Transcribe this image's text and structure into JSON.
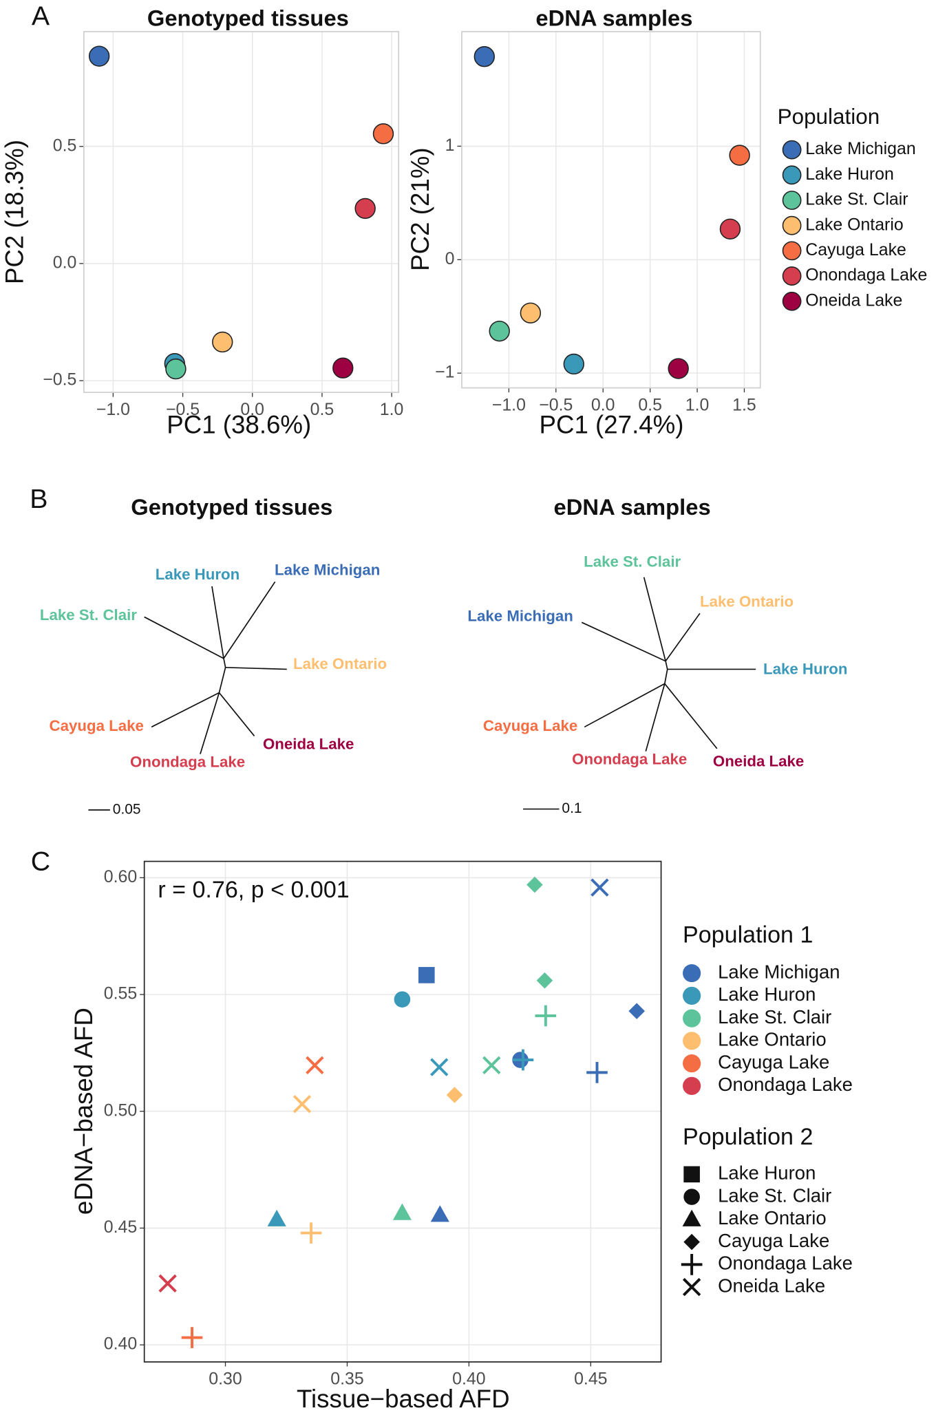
{
  "panel_labels": [
    "A",
    "B",
    "C"
  ],
  "chart_data": [
    {
      "type": "scatter",
      "title": "Genotyped tissues",
      "x_label": "PC1 (38.6%)",
      "y_label": "PC2 (18.3%)",
      "xlim": [
        -1.21,
        1.05
      ],
      "ylim": [
        -0.55,
        0.99
      ],
      "xticks": [
        {
          "value": -1.0,
          "label": "−1.0"
        },
        {
          "value": -0.5,
          "label": "−0.5"
        },
        {
          "value": 0,
          "label": "0.0"
        },
        {
          "value": 0.5,
          "label": "0.5"
        },
        {
          "value": 1.0,
          "label": "1.0"
        }
      ],
      "yticks": [
        {
          "value": -0.5,
          "label": "−0.5"
        },
        {
          "value": 0,
          "label": "0.0"
        },
        {
          "value": 0.5,
          "label": "0.5"
        }
      ],
      "grid": true,
      "marker": "circle",
      "series": [
        {
          "color": "#3a6db5",
          "x": [
            -1.1
          ],
          "values": [
            0.885
          ]
        },
        {
          "color": "#3a98b9",
          "x": [
            -0.558
          ],
          "values": [
            -0.427
          ]
        },
        {
          "color": "#5dc39b",
          "x": [
            -0.55
          ],
          "values": [
            -0.45
          ]
        },
        {
          "color": "#fdbf6f",
          "x": [
            -0.215
          ],
          "values": [
            -0.335
          ]
        },
        {
          "color": "#f46d43",
          "x": [
            0.94
          ],
          "values": [
            0.554
          ]
        },
        {
          "color": "#d53e4f",
          "x": [
            0.81
          ],
          "values": [
            0.235
          ]
        },
        {
          "color": "#9e0142",
          "x": [
            0.65
          ],
          "values": [
            -0.446
          ]
        }
      ]
    },
    {
      "type": "scatter",
      "title": "eDNA samples",
      "x_label": "PC1 (27.4%)",
      "y_label": "PC2 (21%)",
      "xlim": [
        -1.5,
        1.67
      ],
      "ylim": [
        -1.13,
        2.01
      ],
      "xticks": [
        {
          "value": -1.0,
          "label": "−1.0"
        },
        {
          "value": -0.5,
          "label": "−0.5"
        },
        {
          "value": 0,
          "label": "0.0"
        },
        {
          "value": 0.5,
          "label": "0.5"
        },
        {
          "value": 1.0,
          "label": "1.0"
        },
        {
          "value": 1.5,
          "label": "1.5"
        }
      ],
      "yticks": [
        {
          "value": -1,
          "label": "−1"
        },
        0,
        1
      ],
      "grid": true,
      "marker": "circle",
      "legend_title": "Population",
      "series": [
        {
          "name": "Lake Michigan",
          "color": "#3a6db5",
          "x": [
            -1.26
          ],
          "values": [
            1.79
          ]
        },
        {
          "name": "Lake Huron",
          "color": "#3a98b9",
          "x": [
            -0.31
          ],
          "values": [
            -0.92
          ]
        },
        {
          "name": "Lake St. Clair",
          "color": "#5dc39b",
          "x": [
            -1.1
          ],
          "values": [
            -0.63
          ]
        },
        {
          "name": "Lake Ontario",
          "color": "#fdbf6f",
          "x": [
            -0.77
          ],
          "values": [
            -0.47
          ]
        },
        {
          "name": "Cayuga Lake",
          "color": "#f46d43",
          "x": [
            1.45
          ],
          "values": [
            0.92
          ]
        },
        {
          "name": "Onondaga Lake",
          "color": "#d53e4f",
          "x": [
            1.35
          ],
          "values": [
            0.27
          ]
        },
        {
          "name": "Oneida Lake",
          "color": "#9e0142",
          "x": [
            0.8
          ],
          "values": [
            -0.96
          ]
        }
      ]
    },
    {
      "type": "tree",
      "title": "Genotyped tissues",
      "scale_label": "0.05",
      "tips": [
        {
          "label": "Lake Huron",
          "color": "#3a98b9"
        },
        {
          "label": "Lake Michigan",
          "color": "#3a6db5"
        },
        {
          "label": "Lake St. Clair",
          "color": "#5dc39b"
        },
        {
          "label": "Lake Ontario",
          "color": "#fdbf6f"
        },
        {
          "label": "Cayuga Lake",
          "color": "#f46d43"
        },
        {
          "label": "Onondaga Lake",
          "color": "#d53e4f"
        },
        {
          "label": "Oneida Lake",
          "color": "#9e0142"
        }
      ]
    },
    {
      "type": "tree",
      "title": "eDNA samples",
      "scale_label": "0.1",
      "tips": [
        {
          "label": "Lake St. Clair",
          "color": "#5dc39b"
        },
        {
          "label": "Lake Ontario",
          "color": "#fdbf6f"
        },
        {
          "label": "Lake Michigan",
          "color": "#3a6db5"
        },
        {
          "label": "Lake Huron",
          "color": "#3a98b9"
        },
        {
          "label": "Cayuga Lake",
          "color": "#f46d43"
        },
        {
          "label": "Onondaga Lake",
          "color": "#d53e4f"
        },
        {
          "label": "Oneida Lake",
          "color": "#9e0142"
        }
      ]
    },
    {
      "type": "scatter",
      "x_label": "Tissue−based AFD",
      "y_label": "eDNA−based AFD",
      "annotation": "r = 0.76, p < 0.001",
      "xlim": [
        0.2667,
        0.4789
      ],
      "ylim": [
        0.3927,
        0.607
      ],
      "xticks": [
        {
          "value": 0.3,
          "label": "0.30"
        },
        0.35,
        {
          "value": 0.4,
          "label": "0.40"
        },
        0.45
      ],
      "yticks": [
        {
          "value": 0.4,
          "label": "0.40"
        },
        0.45,
        {
          "value": 0.5,
          "label": "0.50"
        },
        0.55,
        {
          "value": 0.6,
          "label": "0.60"
        }
      ],
      "grid": true,
      "legend_title": "Population 1",
      "series": [
        {
          "name": "Lake Michigan",
          "color": "#3a6db5",
          "x": [
            0.3826,
            0.4537,
            0.4689,
            0.4211,
            0.4526,
            0.3881
          ],
          "values": [
            0.5583,
            0.5958,
            0.5429,
            0.522,
            0.5166,
            0.4556
          ],
          "population_2": [
            "Lake Huron",
            "Oneida Lake",
            "Cayuga Lake",
            "Lake St. Clair",
            "Onondaga Lake",
            "Lake Ontario"
          ]
        },
        {
          "name": "Lake Huron",
          "color": "#3a98b9",
          "x": [
            0.3726,
            0.4222,
            0.3878,
            0.3211
          ],
          "values": [
            0.5479,
            0.522,
            0.5189,
            0.4537
          ],
          "population_2": [
            "Lake St. Clair",
            "Onondaga Lake",
            "Oneida Lake",
            "Lake Ontario"
          ]
        },
        {
          "name": "Lake St. Clair",
          "color": "#5dc39b",
          "x": [
            0.427,
            0.4311,
            0.4315,
            0.4093,
            0.3726
          ],
          "values": [
            0.597,
            0.556,
            0.5409,
            0.5197,
            0.4564
          ],
          "population_2": [
            "Cayuga Lake",
            "Cayuga Lake",
            "Onondaga Lake",
            "Oneida Lake",
            "Lake Ontario"
          ]
        },
        {
          "name": "Lake Ontario",
          "color": "#fdbf6f",
          "x": [
            0.3941,
            0.3315,
            0.3352
          ],
          "values": [
            0.507,
            0.5031,
            0.4479
          ],
          "population_2": [
            "Cayuga Lake",
            "Oneida Lake",
            "Onondaga Lake"
          ]
        },
        {
          "name": "Cayuga Lake",
          "color": "#f46d43",
          "x": [
            0.3367,
            0.2863
          ],
          "values": [
            0.5197,
            0.4031
          ],
          "population_2": [
            "Oneida Lake",
            "Onondaga Lake"
          ]
        },
        {
          "name": "Onondaga Lake",
          "color": "#d53e4f",
          "x": [
            0.2763
          ],
          "values": [
            0.4263
          ],
          "population_2": [
            "Oneida Lake"
          ]
        }
      ],
      "shape_legend": {
        "title": "Population 2",
        "items": [
          {
            "name": "Lake Huron",
            "marker": "square"
          },
          {
            "name": "Lake St. Clair",
            "marker": "circle"
          },
          {
            "name": "Lake Ontario",
            "marker": "triangle"
          },
          {
            "name": "Cayuga Lake",
            "marker": "diamond"
          },
          {
            "name": "Onondaga Lake",
            "marker": "plus"
          },
          {
            "name": "Oneida Lake",
            "marker": "cross"
          }
        ]
      }
    }
  ]
}
